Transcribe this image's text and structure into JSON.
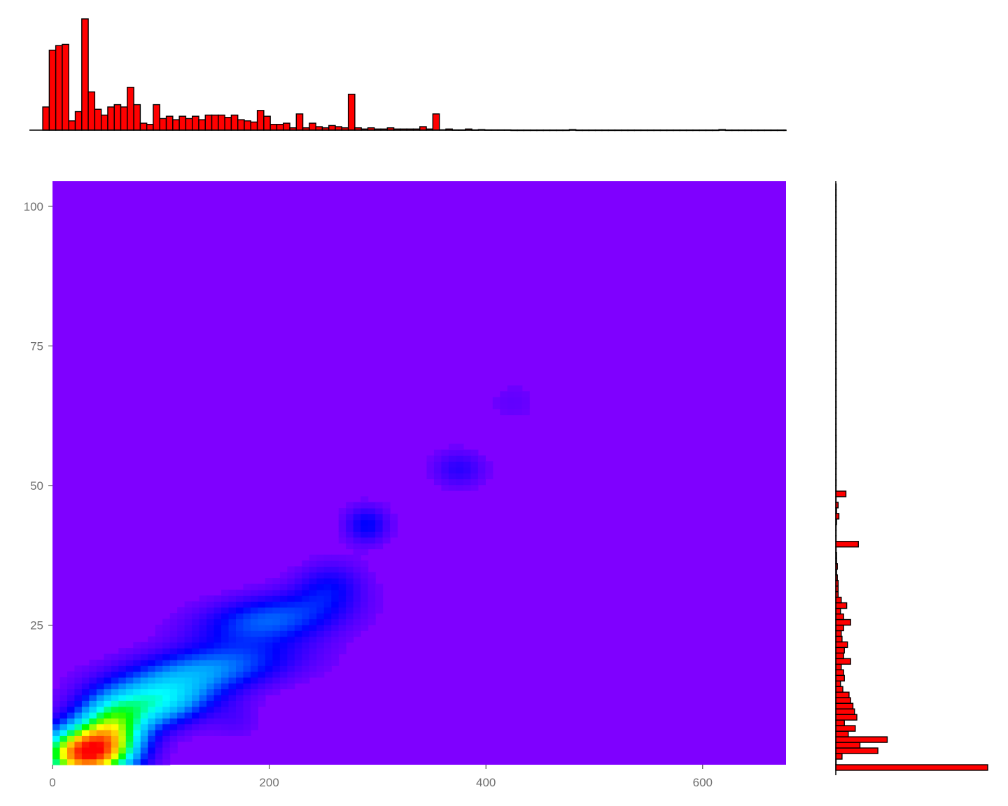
{
  "chart_data": {
    "type": "heatmap",
    "title": "",
    "xlabel": "",
    "ylabel": "",
    "xlim": [
      0,
      677
    ],
    "ylim": [
      0,
      104.5
    ],
    "x_ticks": [
      {
        "value": 0,
        "label": "0"
      },
      {
        "value": 200,
        "label": "200"
      },
      {
        "value": 400,
        "label": "400"
      },
      {
        "value": 600,
        "label": "600"
      }
    ],
    "y_ticks": [
      {
        "value": 25,
        "label": "25"
      },
      {
        "value": 50,
        "label": "50"
      },
      {
        "value": 75,
        "label": "75"
      },
      {
        "value": 100,
        "label": "100"
      }
    ],
    "grid": false,
    "legend": "none",
    "colors": {
      "background": "#7f00ff",
      "palette": [
        "#7f00ff",
        "#0000ff",
        "#00a0ff",
        "#00ffff",
        "#00ff00",
        "#ffff00",
        "#ff8000",
        "#ff0000"
      ],
      "histogram_fill": "#ff0000",
      "histogram_stroke": "#000000"
    },
    "density_peaks": [
      {
        "x": 28,
        "y": 2,
        "sx": 26,
        "sy": 3.2,
        "w": 1.0,
        "rot": 0
      },
      {
        "x": 55,
        "y": 6,
        "sx": 22,
        "sy": 4,
        "w": 0.55,
        "rot": 0
      },
      {
        "x": 95,
        "y": 11,
        "sx": 35,
        "sy": 3,
        "w": 0.42,
        "rot": 0.02
      },
      {
        "x": 140,
        "y": 17,
        "sx": 55,
        "sy": 3,
        "w": 0.3,
        "rot": 0.025
      },
      {
        "x": 200,
        "y": 26,
        "sx": 45,
        "sy": 3,
        "w": 0.26,
        "rot": 0.02
      },
      {
        "x": 255,
        "y": 32,
        "sx": 22,
        "sy": 3,
        "w": 0.14,
        "rot": 0.01
      },
      {
        "x": 290,
        "y": 43,
        "sx": 14,
        "sy": 2.3,
        "w": 0.17,
        "rot": 0
      },
      {
        "x": 375,
        "y": 53,
        "sx": 17,
        "sy": 2.3,
        "w": 0.11,
        "rot": 0
      },
      {
        "x": 425,
        "y": 65,
        "sx": 17,
        "sy": 2.5,
        "w": 0.04,
        "rot": 0
      },
      {
        "x": 170,
        "y": 8,
        "sx": 15,
        "sy": 2.5,
        "w": 0.05,
        "rot": 0
      }
    ],
    "x_hist": {
      "bin_width": 6,
      "start": -9,
      "counts": [
        20,
        69,
        73,
        74,
        8,
        16,
        96,
        33,
        18,
        13,
        20,
        22,
        20,
        37,
        22,
        6,
        5,
        22,
        10,
        12,
        9,
        12,
        10,
        12,
        9,
        13,
        13,
        13,
        11,
        13,
        9,
        8,
        7,
        17,
        12,
        5,
        5,
        6,
        2,
        14,
        2,
        6,
        3,
        2,
        4,
        3,
        2,
        31,
        2,
        1,
        2,
        1,
        1,
        2,
        1,
        1,
        1,
        1,
        3,
        1,
        14,
        0.3,
        1,
        0.2,
        0.2,
        1,
        0.2,
        0.5,
        0.2,
        0.2,
        0.2,
        0.2,
        0,
        0,
        0,
        0,
        0,
        0,
        0,
        0,
        0,
        0.5,
        0,
        0,
        0,
        0,
        0,
        0,
        0,
        0,
        0,
        0,
        0,
        0,
        0,
        0,
        0,
        0,
        0,
        0,
        0,
        0,
        0,
        0,
        0.5,
        0,
        0,
        0,
        0,
        0,
        0,
        0,
        0,
        0,
        0,
        0
      ]
    },
    "y_hist": {
      "bin_width": 1,
      "start": -1,
      "counts": [
        195,
        0,
        8,
        54,
        31,
        66,
        16,
        25,
        11,
        27,
        24,
        22,
        19,
        17,
        9,
        6,
        11,
        10,
        7,
        19,
        10,
        11,
        15,
        8,
        7,
        10,
        19,
        10,
        6,
        14,
        7,
        3,
        3,
        3,
        2,
        1,
        2,
        1,
        1,
        0.5,
        29,
        0,
        0,
        0,
        1,
        4,
        1,
        3,
        0,
        13,
        0,
        0.5,
        0,
        0,
        0.5,
        0,
        0.5,
        0.5,
        0.5,
        0.5,
        0,
        0,
        0,
        0,
        0,
        0.5,
        0,
        0,
        0,
        0,
        0,
        0.5,
        0,
        0,
        0,
        0,
        0,
        0,
        0,
        0,
        0,
        0,
        0,
        0,
        0,
        0,
        0,
        0.5,
        0,
        0,
        0,
        0,
        0,
        0,
        0,
        0,
        0,
        0,
        0,
        0,
        0,
        0,
        0,
        0,
        0
      ]
    }
  }
}
